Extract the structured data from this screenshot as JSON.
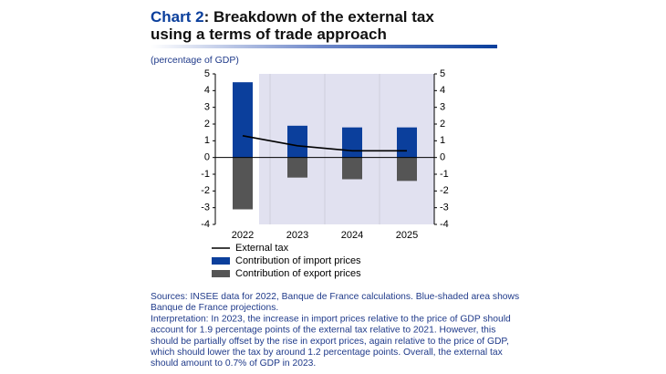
{
  "chart_data": {
    "type": "bar-line",
    "title_label": "Chart 2",
    "title": [
      ": Breakdown of the external tax",
      "using a terms of trade approach"
    ],
    "ylabel": "(percentage of GDP)",
    "categories": [
      "2022",
      "2023",
      "2024",
      "2025"
    ],
    "series": [
      {
        "name": "External tax",
        "type": "line",
        "color": "#000000",
        "values": [
          1.3,
          0.7,
          0.4,
          0.4
        ]
      },
      {
        "name": "Contribution of import prices",
        "type": "bar",
        "color": "#0b3f9c",
        "values": [
          4.5,
          1.9,
          1.8,
          1.8
        ]
      },
      {
        "name": "Contribution of export prices",
        "type": "bar",
        "color": "#555555",
        "values": [
          -3.1,
          -1.2,
          -1.3,
          -1.4
        ]
      }
    ],
    "ylim": [
      -4,
      5
    ],
    "yticks": [
      -4,
      -3,
      -2,
      -1,
      0,
      1,
      2,
      3,
      4,
      5
    ],
    "y2lim": [
      -4,
      5
    ],
    "y2ticks": [
      -4,
      -3,
      -2,
      -1,
      0,
      1,
      2,
      3,
      4,
      5
    ],
    "shaded_from_index": 1,
    "shaded_color": "#e1e1f0",
    "notes": [
      "Sources: INSEE data for 2022, Banque de France calculations. Blue-shaded area shows",
      "Banque de France projections.",
      "Interpretation: In 2023, the increase in import prices relative to the price of GDP should",
      "account for 1.9 percentage points of the external tax relative to 2021. However, this",
      "should be partially offset by the rise in export prices, again relative to the price of GDP,",
      "which should lower the tax by around 1.2 percentage points. Overall, the external tax",
      "should amount to 0.7% of GDP in 2023."
    ]
  }
}
